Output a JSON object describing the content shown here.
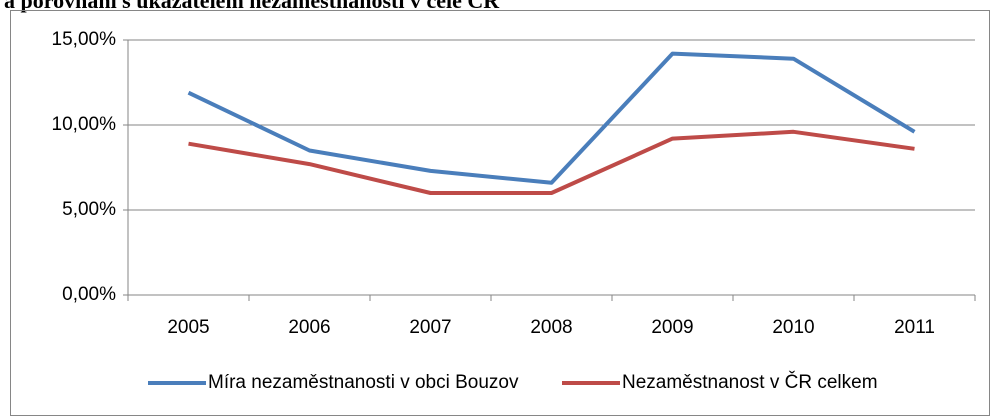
{
  "heading": "a porovnání s ukazatelem nezaměstnanosti v celé ČR",
  "chart_data": {
    "type": "line",
    "categories": [
      "2005",
      "2006",
      "2007",
      "2008",
      "2009",
      "2010",
      "2011"
    ],
    "series": [
      {
        "name": "Míra nezaměstnanosti v obci Bouzov",
        "color": "#4a7ebb",
        "values": [
          11.9,
          8.5,
          7.3,
          6.6,
          14.2,
          13.9,
          9.6
        ]
      },
      {
        "name": "Nezaměstnanost v ČR celkem",
        "color": "#be4b48",
        "values": [
          8.9,
          7.7,
          6.0,
          6.0,
          9.2,
          9.6,
          8.6
        ]
      }
    ],
    "ylim": [
      0,
      15
    ],
    "yticks": [
      {
        "value": 0,
        "label": "0,00%"
      },
      {
        "value": 5,
        "label": "5,00%"
      },
      {
        "value": 10,
        "label": "10,00%"
      },
      {
        "value": 15,
        "label": "15,00%"
      }
    ],
    "grid": true,
    "legend": "bottom"
  }
}
